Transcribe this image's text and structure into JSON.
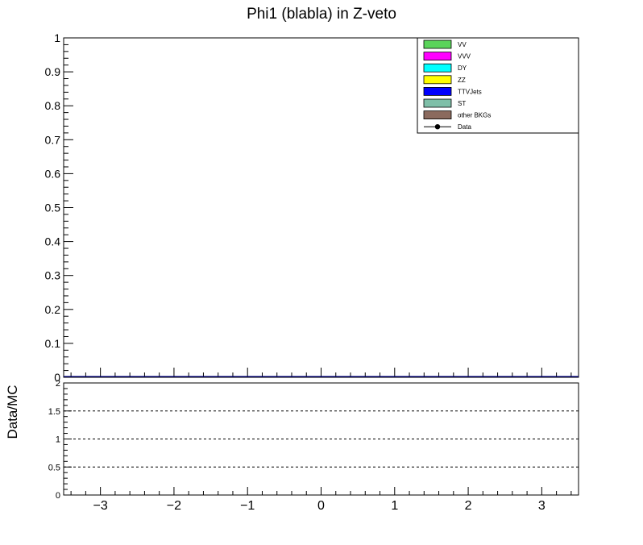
{
  "chart_data": [
    {
      "type": "bar",
      "title": "Phi1 (blabla) in Z-veto",
      "xlabel": "",
      "ylabel": "",
      "xlim": [
        -3.5,
        3.5
      ],
      "ylim": [
        0,
        1
      ],
      "y_tick_labels": [
        "0",
        "0.1",
        "0.2",
        "0.3",
        "0.4",
        "0.5",
        "0.6",
        "0.7",
        "0.8",
        "0.9",
        "1"
      ],
      "grid": false,
      "legend_position": "top-right",
      "series": [
        {
          "name": "VV",
          "color": "#5ad45a",
          "values": []
        },
        {
          "name": "VVV",
          "color": "#ff00ff",
          "values": []
        },
        {
          "name": "DY",
          "color": "#00ffff",
          "values": []
        },
        {
          "name": "ZZ",
          "color": "#ffff00",
          "values": []
        },
        {
          "name": "TTVJets",
          "color": "#0000ff",
          "values": []
        },
        {
          "name": "ST",
          "color": "#7fbfa8",
          "values": []
        },
        {
          "name": "other BKGs",
          "color": "#8b6a5e",
          "values": []
        },
        {
          "name": "Data",
          "color": "#000000",
          "marker": "circle",
          "values": []
        }
      ],
      "stack_total_line": {
        "color": "#000080",
        "value": 0
      }
    },
    {
      "type": "scatter",
      "title": "",
      "xlabel": "",
      "ylabel": "Data/MC",
      "xlim": [
        -3.5,
        3.5
      ],
      "ylim": [
        0,
        2
      ],
      "x_tick_labels": [
        "−3",
        "−2",
        "−1",
        "0",
        "1",
        "2",
        "3"
      ],
      "x_tick_values": [
        -3,
        -2,
        -1,
        0,
        1,
        2,
        3
      ],
      "y_tick_labels": [
        "0",
        "0.5",
        "1",
        "1.5",
        "2"
      ],
      "y_tick_values": [
        0,
        0.5,
        1,
        1.5,
        2
      ],
      "reference_lines": [
        0.5,
        1,
        1.5
      ],
      "series": []
    }
  ]
}
